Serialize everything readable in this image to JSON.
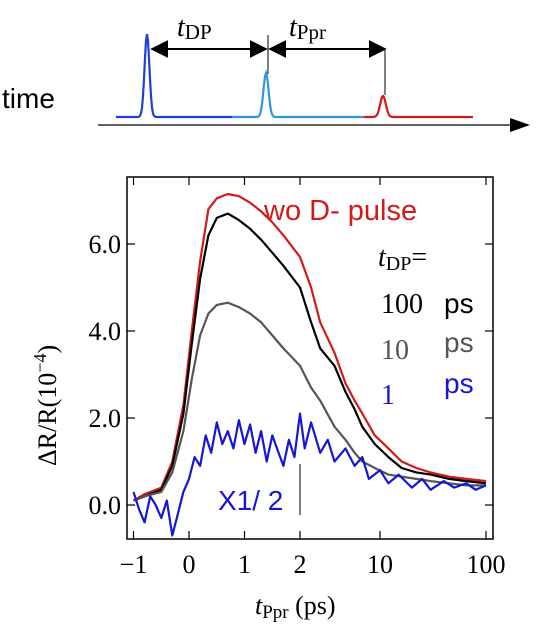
{
  "timing_diagram": {
    "time_label": "time",
    "t_dp": {
      "main": "t",
      "sub": "DP"
    },
    "t_ppr": {
      "main": "t",
      "sub": "Ppr"
    },
    "colors": {
      "d_pulse": "#1f3fd6",
      "pump": "#2f95e0",
      "probe": "#d21a1a"
    }
  },
  "chart_data": {
    "type": "line",
    "x_axis": {
      "label_main": "t",
      "label_sub": "Ppr",
      "label_unit": " (ps)",
      "ticks": [
        {
          "label": "−1",
          "value": -1
        },
        {
          "label": "0",
          "value": 0
        },
        {
          "label": "1",
          "value": 1
        },
        {
          "label": "2",
          "value": 2
        },
        {
          "label": "10",
          "value": 10
        },
        {
          "label": "100",
          "value": 100
        }
      ],
      "scale": "linear from -1 to 2 ps, logarithmic from 2 to 100 ps"
    },
    "y_axis": {
      "label": "ΔR/R(10",
      "label_sup": "−4",
      "label_close": ")",
      "ticks": [
        {
          "label": "0.0",
          "value": 0
        },
        {
          "label": "2.0",
          "value": 2
        },
        {
          "label": "4.0",
          "value": 4
        },
        {
          "label": "6.0",
          "value": 6
        }
      ],
      "ylim": [
        -0.9,
        7.8
      ]
    },
    "series": [
      {
        "name": "wo D- pulse",
        "color": "#d21a1a",
        "points": [
          [
            -1.0,
            0.1
          ],
          [
            -0.8,
            0.25
          ],
          [
            -0.5,
            0.4
          ],
          [
            -0.3,
            1.0
          ],
          [
            -0.1,
            2.3
          ],
          [
            0.05,
            4.0
          ],
          [
            0.2,
            5.6
          ],
          [
            0.35,
            6.8
          ],
          [
            0.5,
            7.05
          ],
          [
            0.7,
            7.15
          ],
          [
            0.9,
            7.1
          ],
          [
            1.1,
            6.95
          ],
          [
            1.3,
            6.75
          ],
          [
            1.5,
            6.5
          ],
          [
            1.7,
            6.2
          ],
          [
            2.0,
            5.7
          ],
          [
            2.5,
            5.0
          ],
          [
            3.0,
            4.2
          ],
          [
            4.0,
            3.5
          ],
          [
            5.0,
            2.8
          ],
          [
            6.0,
            2.4
          ],
          [
            7.0,
            2.1
          ],
          [
            9.0,
            1.6
          ],
          [
            12.0,
            1.3
          ],
          [
            16.0,
            1.0
          ],
          [
            22.0,
            0.85
          ],
          [
            30.0,
            0.75
          ],
          [
            45.0,
            0.65
          ],
          [
            65.0,
            0.6
          ],
          [
            100.0,
            0.55
          ]
        ]
      },
      {
        "name": "100 ps",
        "color": "#000000",
        "points": [
          [
            -1.0,
            0.1
          ],
          [
            -0.8,
            0.2
          ],
          [
            -0.5,
            0.35
          ],
          [
            -0.3,
            0.9
          ],
          [
            -0.1,
            2.1
          ],
          [
            0.05,
            3.7
          ],
          [
            0.2,
            5.2
          ],
          [
            0.35,
            6.2
          ],
          [
            0.5,
            6.6
          ],
          [
            0.7,
            6.7
          ],
          [
            0.9,
            6.55
          ],
          [
            1.1,
            6.35
          ],
          [
            1.3,
            6.1
          ],
          [
            1.5,
            5.8
          ],
          [
            1.7,
            5.5
          ],
          [
            2.0,
            5.0
          ],
          [
            2.5,
            4.2
          ],
          [
            3.0,
            3.6
          ],
          [
            4.0,
            3.2
          ],
          [
            5.0,
            2.6
          ],
          [
            6.0,
            2.2
          ],
          [
            7.0,
            1.8
          ],
          [
            9.0,
            1.4
          ],
          [
            12.0,
            1.1
          ],
          [
            16.0,
            0.85
          ],
          [
            22.0,
            0.75
          ],
          [
            30.0,
            0.7
          ],
          [
            45.0,
            0.6
          ],
          [
            65.0,
            0.55
          ],
          [
            100.0,
            0.5
          ]
        ]
      },
      {
        "name": "10 ps",
        "color": "#555555",
        "points": [
          [
            -1.0,
            0.1
          ],
          [
            -0.8,
            0.2
          ],
          [
            -0.5,
            0.3
          ],
          [
            -0.3,
            0.75
          ],
          [
            -0.1,
            1.7
          ],
          [
            0.05,
            2.9
          ],
          [
            0.2,
            3.9
          ],
          [
            0.35,
            4.4
          ],
          [
            0.5,
            4.6
          ],
          [
            0.7,
            4.65
          ],
          [
            0.9,
            4.55
          ],
          [
            1.1,
            4.4
          ],
          [
            1.3,
            4.2
          ],
          [
            1.5,
            3.9
          ],
          [
            1.7,
            3.6
          ],
          [
            2.0,
            3.2
          ],
          [
            2.5,
            2.7
          ],
          [
            3.0,
            2.4
          ],
          [
            4.0,
            1.8
          ],
          [
            5.0,
            1.5
          ],
          [
            6.0,
            1.2
          ],
          [
            7.0,
            1.0
          ],
          [
            9.0,
            0.85
          ],
          [
            12.0,
            0.7
          ],
          [
            16.0,
            0.65
          ],
          [
            22.0,
            0.6
          ],
          [
            30.0,
            0.55
          ],
          [
            45.0,
            0.5
          ],
          [
            65.0,
            0.45
          ],
          [
            100.0,
            0.45
          ]
        ]
      },
      {
        "name": "1 ps",
        "color": "#1616d6",
        "points": [
          [
            -1.0,
            0.3
          ],
          [
            -0.9,
            -0.1
          ],
          [
            -0.8,
            -0.4
          ],
          [
            -0.7,
            0.2
          ],
          [
            -0.6,
            0.0
          ],
          [
            -0.5,
            -0.3
          ],
          [
            -0.4,
            0.1
          ],
          [
            -0.3,
            -0.7
          ],
          [
            -0.2,
            -0.2
          ],
          [
            -0.1,
            0.3
          ],
          [
            0.0,
            0.6
          ],
          [
            0.1,
            1.1
          ],
          [
            0.2,
            0.9
          ],
          [
            0.3,
            1.6
          ],
          [
            0.4,
            1.2
          ],
          [
            0.5,
            1.9
          ],
          [
            0.6,
            1.4
          ],
          [
            0.7,
            1.7
          ],
          [
            0.8,
            1.3
          ],
          [
            0.9,
            1.95
          ],
          [
            1.0,
            1.4
          ],
          [
            1.1,
            1.85
          ],
          [
            1.2,
            1.2
          ],
          [
            1.3,
            1.7
          ],
          [
            1.4,
            1.0
          ],
          [
            1.5,
            1.6
          ],
          [
            1.6,
            1.25
          ],
          [
            1.7,
            0.9
          ],
          [
            1.8,
            1.5
          ],
          [
            1.9,
            1.1
          ],
          [
            2.0,
            2.1
          ],
          [
            2.2,
            1.3
          ],
          [
            2.5,
            1.9
          ],
          [
            3.0,
            1.2
          ],
          [
            3.5,
            1.5
          ],
          [
            4.0,
            1.0
          ],
          [
            5.0,
            1.3
          ],
          [
            6.0,
            0.9
          ],
          [
            7.0,
            1.1
          ],
          [
            8.0,
            0.6
          ],
          [
            10.0,
            0.8
          ],
          [
            12.0,
            0.5
          ],
          [
            15.0,
            0.7
          ],
          [
            20.0,
            0.4
          ],
          [
            25.0,
            0.6
          ],
          [
            30.0,
            0.35
          ],
          [
            40.0,
            0.55
          ],
          [
            50.0,
            0.4
          ],
          [
            65.0,
            0.5
          ],
          [
            80.0,
            0.35
          ],
          [
            100.0,
            0.45
          ]
        ]
      }
    ],
    "annotations": {
      "wo_label": "wo D- pulse",
      "tdp_main": "t",
      "tdp_sub": "DP",
      "tdp_eq": "=",
      "legend_rows": [
        {
          "value": "100",
          "unit": "ps",
          "color": "#000000"
        },
        {
          "value": "10",
          "unit": "ps",
          "color": "#555555"
        },
        {
          "value": "1",
          "unit": "ps",
          "color": "#1616d6"
        }
      ],
      "scale_note": "X1/ 2",
      "scale_note_color": "#1616d6"
    },
    "grid": false
  }
}
